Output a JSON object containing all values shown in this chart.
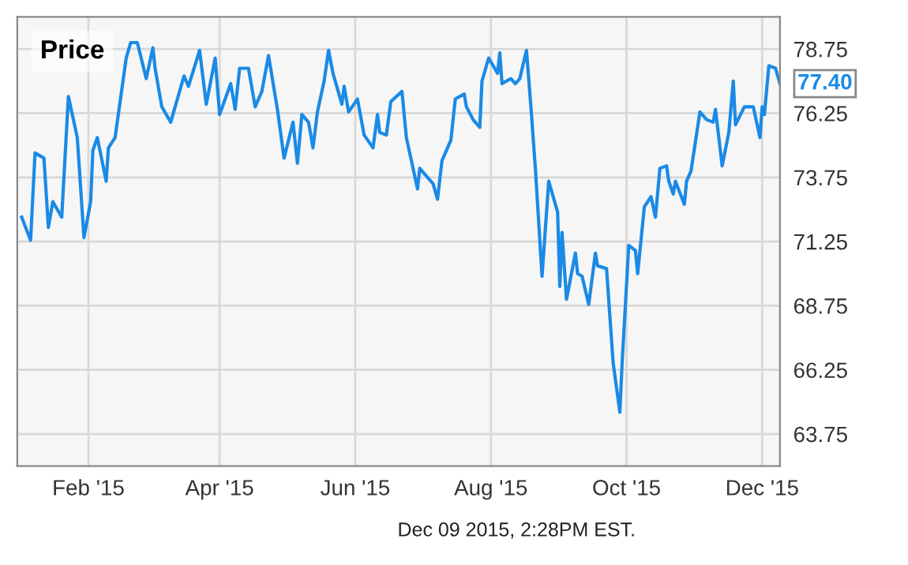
{
  "chart_data": {
    "type": "line",
    "title": "Price",
    "x": [
      "2015-01-02",
      "2015-01-06",
      "2015-01-08",
      "2015-01-12",
      "2015-01-14",
      "2015-01-16",
      "2015-01-20",
      "2015-01-23",
      "2015-01-27",
      "2015-01-30",
      "2015-02-02",
      "2015-02-03",
      "2015-02-05",
      "2015-02-09",
      "2015-02-10",
      "2015-02-13",
      "2015-02-18",
      "2015-02-20",
      "2015-02-23",
      "2015-02-27",
      "2015-03-02",
      "2015-03-03",
      "2015-03-06",
      "2015-03-10",
      "2015-03-13",
      "2015-03-16",
      "2015-03-18",
      "2015-03-23",
      "2015-03-26",
      "2015-03-30",
      "2015-04-01",
      "2015-04-06",
      "2015-04-08",
      "2015-04-10",
      "2015-04-14",
      "2015-04-17",
      "2015-04-20",
      "2015-04-23",
      "2015-04-27",
      "2015-04-30",
      "2015-05-04",
      "2015-05-06",
      "2015-05-08",
      "2015-05-11",
      "2015-05-13",
      "2015-05-15",
      "2015-05-18",
      "2015-05-20",
      "2015-05-22",
      "2015-05-26",
      "2015-05-27",
      "2015-05-29",
      "2015-06-02",
      "2015-06-05",
      "2015-06-09",
      "2015-06-11",
      "2015-06-12",
      "2015-06-15",
      "2015-06-17",
      "2015-06-22",
      "2015-06-24",
      "2015-06-29",
      "2015-06-30",
      "2015-07-06",
      "2015-07-08",
      "2015-07-10",
      "2015-07-14",
      "2015-07-16",
      "2015-07-20",
      "2015-07-21",
      "2015-07-24",
      "2015-07-27",
      "2015-07-28",
      "2015-07-31",
      "2015-08-04",
      "2015-08-05",
      "2015-08-06",
      "2015-08-10",
      "2015-08-12",
      "2015-08-14",
      "2015-08-17",
      "2015-08-19",
      "2015-08-21",
      "2015-08-24",
      "2015-08-27",
      "2015-08-31",
      "2015-09-01",
      "2015-09-02",
      "2015-09-04",
      "2015-09-08",
      "2015-09-09",
      "2015-09-11",
      "2015-09-14",
      "2015-09-17",
      "2015-09-18",
      "2015-09-22",
      "2015-09-25",
      "2015-09-28",
      "2015-09-29",
      "2015-10-02",
      "2015-10-05",
      "2015-10-06",
      "2015-10-09",
      "2015-10-12",
      "2015-10-14",
      "2015-10-16",
      "2015-10-19",
      "2015-10-20",
      "2015-10-22",
      "2015-10-23",
      "2015-10-27",
      "2015-10-28",
      "2015-10-30",
      "2015-11-03",
      "2015-11-06",
      "2015-11-09",
      "2015-11-10",
      "2015-11-13",
      "2015-11-16",
      "2015-11-18",
      "2015-11-19",
      "2015-11-23",
      "2015-11-27",
      "2015-11-30",
      "2015-12-01",
      "2015-12-02",
      "2015-12-04",
      "2015-12-07",
      "2015-12-09"
    ],
    "series": [
      {
        "color": "#1a8ae6",
        "values": [
          72.2,
          71.3,
          74.7,
          74.5,
          71.8,
          72.8,
          72.2,
          76.9,
          75.3,
          71.4,
          72.8,
          74.8,
          75.3,
          73.6,
          74.9,
          75.3,
          78.4,
          79.0,
          79.0,
          77.6,
          78.8,
          78.0,
          76.5,
          75.9,
          76.8,
          77.7,
          77.3,
          78.7,
          76.6,
          78.4,
          76.2,
          77.4,
          76.4,
          78.0,
          78.0,
          76.5,
          77.1,
          78.5,
          76.4,
          74.5,
          75.9,
          74.3,
          76.2,
          75.9,
          74.9,
          76.3,
          77.5,
          78.7,
          77.8,
          76.6,
          77.3,
          76.3,
          76.8,
          75.4,
          74.9,
          76.2,
          75.5,
          75.4,
          76.7,
          77.1,
          75.3,
          73.3,
          74.1,
          73.5,
          72.9,
          74.4,
          75.2,
          76.8,
          77.0,
          76.5,
          76.0,
          75.7,
          77.5,
          78.4,
          77.8,
          78.6,
          77.4,
          77.6,
          77.4,
          77.6,
          78.7,
          76.5,
          74.1,
          69.9,
          73.6,
          72.4,
          69.5,
          71.6,
          69.0,
          70.8,
          70.0,
          69.9,
          68.8,
          70.8,
          70.3,
          70.2,
          66.5,
          64.6,
          66.5,
          71.1,
          70.9,
          70.0,
          72.6,
          73.0,
          72.2,
          74.1,
          74.2,
          73.6,
          73.1,
          73.6,
          72.7,
          73.6,
          74.0,
          76.3,
          76.0,
          75.9,
          76.4,
          74.2,
          75.5,
          77.5,
          75.8,
          76.5,
          76.5,
          75.3,
          76.5,
          76.2,
          78.1,
          78.0,
          77.4
        ]
      }
    ],
    "xlim": [
      "2014-12-31",
      "2015-12-09"
    ],
    "xticks": [
      {
        "value": "2015-02-01",
        "label": "Feb '15"
      },
      {
        "value": "2015-04-01",
        "label": "Apr '15"
      },
      {
        "value": "2015-06-01",
        "label": "Jun '15"
      },
      {
        "value": "2015-08-01",
        "label": "Aug '15"
      },
      {
        "value": "2015-10-01",
        "label": "Oct '15"
      },
      {
        "value": "2015-12-01",
        "label": "Dec '15"
      }
    ],
    "ylim": [
      62.5,
      80.0
    ],
    "yticks": [
      63.75,
      66.25,
      68.75,
      71.25,
      73.75,
      76.25,
      78.75
    ],
    "grid": true,
    "marker": "none",
    "line_style": "solid",
    "annotations": [
      {
        "text": "77.40",
        "x": "2015-12-09",
        "y": 77.4
      },
      "Dec 09 2015, 2:28PM EST."
    ]
  }
}
